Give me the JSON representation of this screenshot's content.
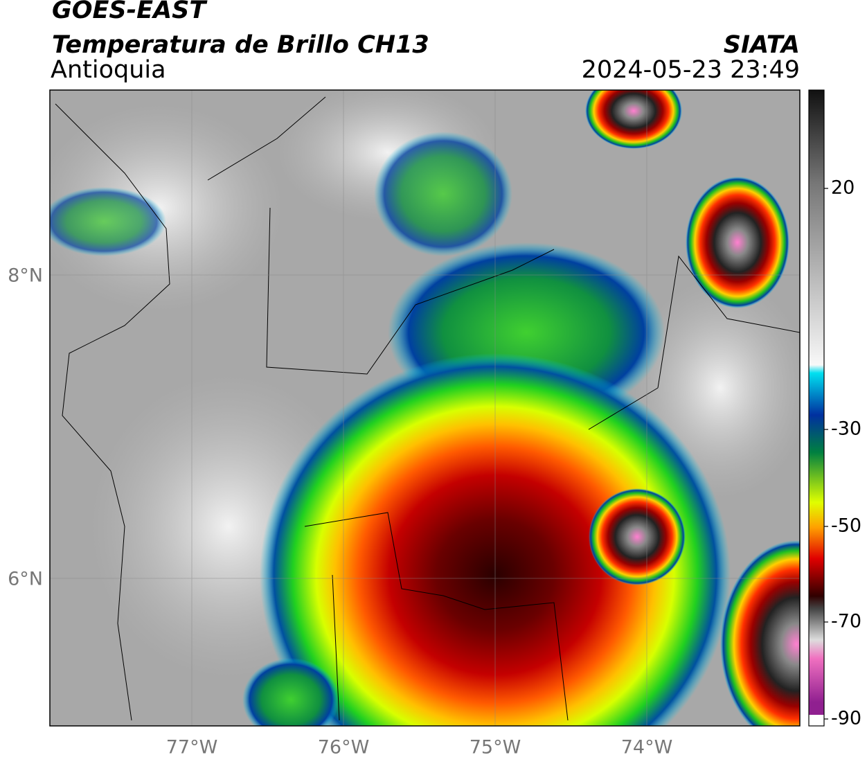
{
  "header": {
    "title": "GOES-EAST",
    "subtitle": "Temperatura de Brillo CH13",
    "region": "Antioquia",
    "source": "SIATA",
    "timestamp": "2024-05-23 23:49"
  },
  "map": {
    "lat_labels": [
      "8°N",
      "6°N"
    ],
    "lon_labels": [
      "77°W",
      "76°W",
      "75°W",
      "74°W"
    ]
  },
  "colorbar": {
    "ticks": [
      20,
      -30,
      -50,
      -70,
      -90
    ]
  }
}
